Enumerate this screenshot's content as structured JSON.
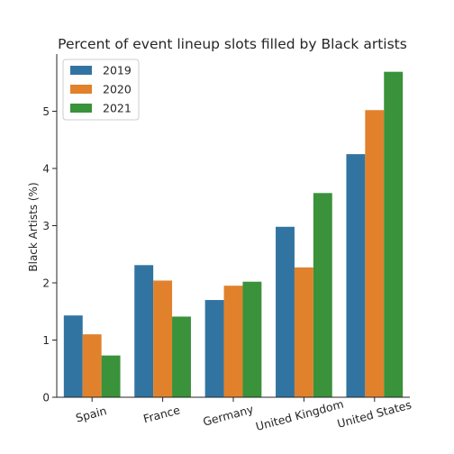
{
  "chart_data": {
    "type": "bar",
    "title": "Percent of event lineup slots filled by Black artists",
    "xlabel": "",
    "ylabel": "Black Artists (%)",
    "categories": [
      "Spain",
      "France",
      "Germany",
      "United Kingdom",
      "United States"
    ],
    "series": [
      {
        "name": "2019",
        "color": "#3274a1",
        "values": [
          1.43,
          2.31,
          1.7,
          2.98,
          4.25
        ]
      },
      {
        "name": "2020",
        "color": "#e1812c",
        "values": [
          1.1,
          2.04,
          1.95,
          2.27,
          5.02
        ]
      },
      {
        "name": "2021",
        "color": "#3a923a",
        "values": [
          0.73,
          1.41,
          2.02,
          3.57,
          5.69
        ]
      }
    ],
    "ylim": [
      0,
      6.0
    ],
    "yticks": [
      "0",
      "1",
      "2",
      "3",
      "4",
      "5"
    ],
    "legend": "top-left",
    "grid": false
  }
}
